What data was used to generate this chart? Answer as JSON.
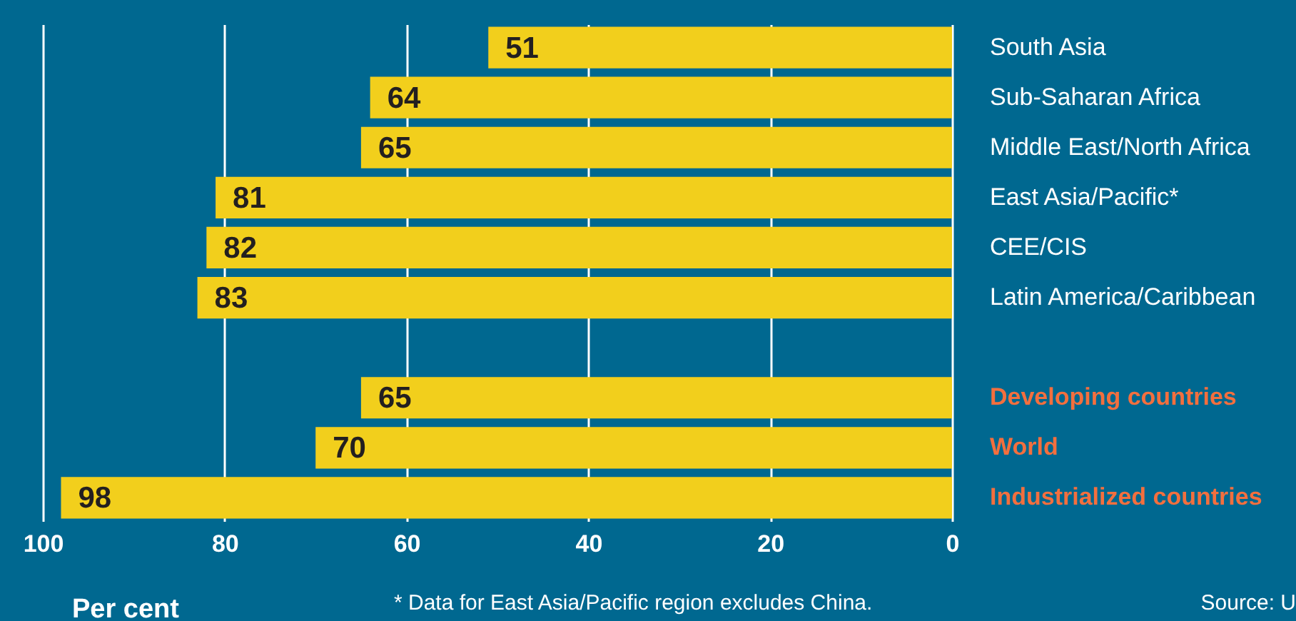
{
  "chart_data": {
    "type": "bar",
    "orientation": "horizontal",
    "xlabel": "Per cent",
    "categories": [
      "South Asia",
      "Sub-Saharan Africa",
      "Middle East/North Africa",
      "East Asia/Pacific*",
      "CEE/CIS",
      "Latin America/Caribbean",
      null,
      "Developing countries",
      "World",
      "Industrialized countries"
    ],
    "values": [
      51,
      64,
      65,
      81,
      82,
      83,
      null,
      65,
      70,
      98
    ],
    "color": "#f2cf1c",
    "xlim": [
      100,
      0
    ],
    "xticks": [
      100,
      80,
      60,
      40,
      20,
      0
    ],
    "grid": "x",
    "data_labels": true,
    "annotations": [
      "* Data for East Asia/Pacific region excludes China.",
      "Source: U"
    ]
  }
}
